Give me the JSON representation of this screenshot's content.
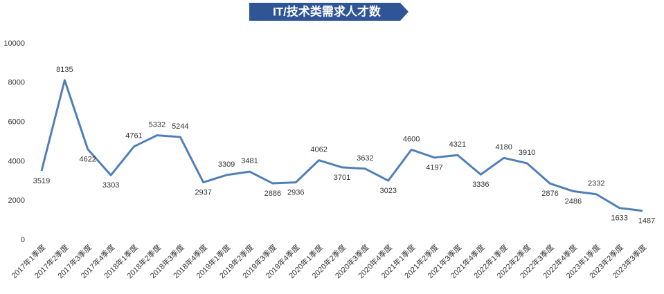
{
  "chart_data": {
    "type": "line",
    "title": "IT/技术类需求人才数",
    "categories": [
      "2017年1季度",
      "2017年2季度",
      "2017年3季度",
      "2017年4季度",
      "2018年1季度",
      "2018年2季度",
      "2018年3季度",
      "2018年4季度",
      "2019年1季度",
      "2019年2季度",
      "2019年3季度",
      "2019年4季度",
      "2020年1季度",
      "2020年2季度",
      "2020年3季度",
      "2020年4季度",
      "2021年1季度",
      "2021年2季度",
      "2021年3季度",
      "2021年4季度",
      "2022年1季度",
      "2022年2季度",
      "2022年3季度",
      "2022年4季度",
      "2023年1季度",
      "2023年2季度",
      "2023年3季度"
    ],
    "values": [
      3519,
      8135,
      4622,
      3303,
      4761,
      5332,
      5244,
      2937,
      3309,
      3481,
      2886,
      2936,
      4062,
      3701,
      3632,
      3023,
      4600,
      4197,
      4321,
      3336,
      4180,
      3910,
      2876,
      2486,
      2332,
      1633,
      1487
    ],
    "color": "#4f7fb8",
    "ylim": [
      0,
      10000
    ],
    "yticks": [
      0,
      2000,
      4000,
      6000,
      8000,
      10000
    ],
    "grid": false
  }
}
